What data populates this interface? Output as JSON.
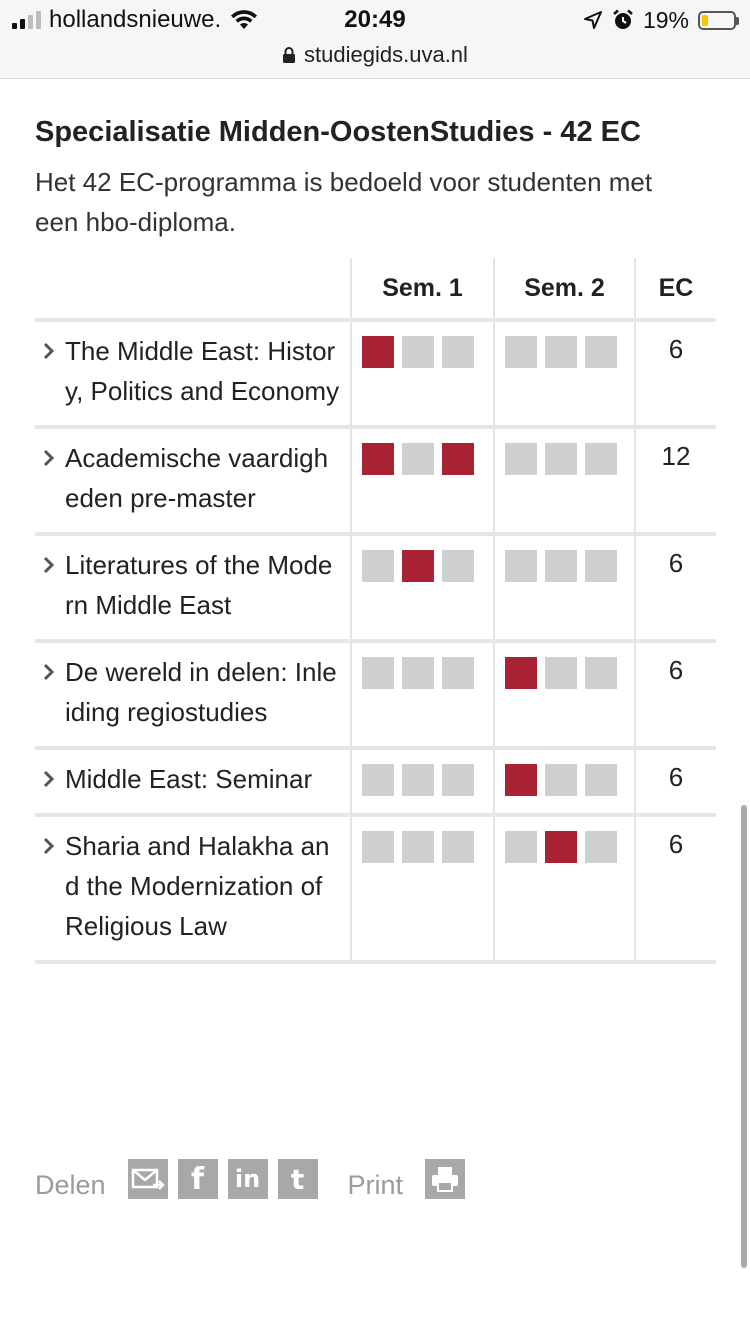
{
  "status_bar": {
    "carrier": "hollandsnieuwe.",
    "time": "20:49",
    "battery": "19%",
    "battery_level": 0.19
  },
  "browser": {
    "url": "studiegids.uva.nl"
  },
  "page": {
    "title": "Specialisatie Midden-OostenStudies - 42 EC",
    "intro": "Het 42 EC-programma is bedoeld voor studenten met een hbo-diploma."
  },
  "table": {
    "headers": {
      "name": "",
      "sem1": "Sem. 1",
      "sem2": "Sem. 2",
      "ec": "EC"
    },
    "rows": [
      {
        "name": "The Middle East: History, Politics and Economy",
        "sem1": [
          1,
          0,
          0
        ],
        "sem2": [
          0,
          0,
          0
        ],
        "ec": "6"
      },
      {
        "name": "Academische vaardigheden pre-master",
        "sem1": [
          1,
          0,
          1
        ],
        "sem2": [
          0,
          0,
          0
        ],
        "ec": "12"
      },
      {
        "name": "Literatures of the Modern Middle East",
        "sem1": [
          0,
          1,
          0
        ],
        "sem2": [
          0,
          0,
          0
        ],
        "ec": "6"
      },
      {
        "name": "De wereld in delen: Inleiding regiostudies",
        "sem1": [
          0,
          0,
          0
        ],
        "sem2": [
          1,
          0,
          0
        ],
        "ec": "6"
      },
      {
        "name": "Middle East: Seminar",
        "sem1": [
          0,
          0,
          0
        ],
        "sem2": [
          1,
          0,
          0
        ],
        "ec": "6"
      },
      {
        "name": "Sharia and Halakha and the Modernization of Religious Law",
        "sem1": [
          0,
          0,
          0
        ],
        "sem2": [
          0,
          1,
          0
        ],
        "ec": "6"
      }
    ]
  },
  "share": {
    "share_label": "Delen",
    "print_label": "Print",
    "icons": [
      "email-icon",
      "facebook-icon",
      "linkedin-icon",
      "twitter-icon",
      "printer-icon"
    ]
  },
  "colors": {
    "accent": "#a92335",
    "inactive_block": "#cfcfcf",
    "muted_text": "#9b9b9b"
  }
}
